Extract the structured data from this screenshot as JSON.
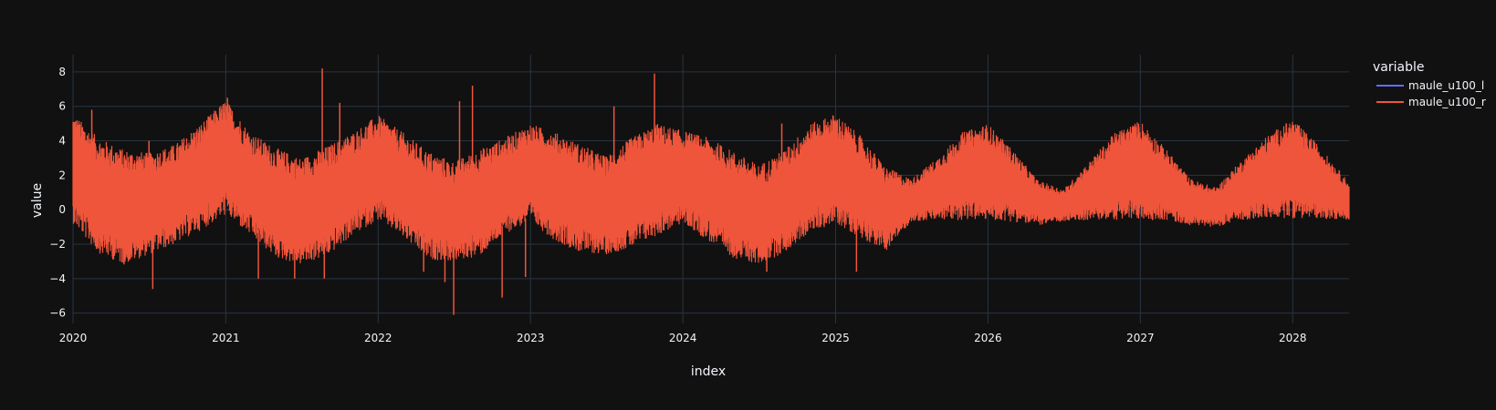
{
  "colors": {
    "background": "#111111",
    "grid": "#283442",
    "text": "#f2f5fa",
    "series_l": "#636efa",
    "series_r": "#ef553b"
  },
  "chart_data": {
    "type": "line",
    "title": "",
    "xlabel": "index",
    "ylabel": "value",
    "x_range": [
      "2020-01-01",
      "2028-05-15"
    ],
    "ylim": [
      -6.6,
      9.0
    ],
    "x_tick_labels": [
      "2020",
      "2021",
      "2022",
      "2023",
      "2024",
      "2025",
      "2026",
      "2027",
      "2028"
    ],
    "y_ticks": [
      -6,
      -4,
      -2,
      0,
      2,
      4,
      6,
      8
    ],
    "y_tick_labels": [
      "−6",
      "−4",
      "−2",
      "0",
      "2",
      "4",
      "6",
      "8"
    ],
    "grid": true,
    "legend": {
      "title": "variable",
      "placement": "top-right"
    },
    "series": [
      {
        "name": "maule_u100_l",
        "color": "#636efa",
        "note_visible": "hidden behind maule_u100_r",
        "envelope": {
          "x": [],
          "upper": [],
          "lower": []
        }
      },
      {
        "name": "maule_u100_r",
        "color": "#ef553b",
        "envelope": {
          "x": [
            "2020-01-01",
            "2020-03-01",
            "2020-05-01",
            "2020-07-01",
            "2020-09-01",
            "2020-11-01",
            "2021-01-01",
            "2021-03-01",
            "2021-05-01",
            "2021-07-01",
            "2021-09-01",
            "2021-11-01",
            "2022-01-01",
            "2022-03-01",
            "2022-05-01",
            "2022-07-01",
            "2022-09-01",
            "2022-11-01",
            "2023-01-01",
            "2023-03-01",
            "2023-05-01",
            "2023-07-01",
            "2023-09-01",
            "2023-11-01",
            "2024-01-01",
            "2024-03-01",
            "2024-05-01",
            "2024-07-01",
            "2024-09-01",
            "2024-11-01",
            "2025-01-01",
            "2025-03-01",
            "2025-05-01",
            "2025-07-01",
            "2025-09-01",
            "2025-11-01",
            "2026-01-01",
            "2026-03-01",
            "2026-05-01",
            "2026-07-01",
            "2026-09-01",
            "2026-11-01",
            "2027-01-01",
            "2027-03-01",
            "2027-05-01",
            "2027-07-01",
            "2027-09-01",
            "2027-11-01",
            "2028-01-01",
            "2028-03-01",
            "2028-05-15"
          ],
          "upper": [
            5.6,
            4.2,
            3.5,
            3.3,
            3.8,
            5.0,
            6.4,
            4.5,
            3.6,
            3.0,
            3.7,
            4.5,
            5.5,
            4.5,
            3.4,
            2.8,
            3.5,
            4.2,
            5.0,
            4.5,
            3.8,
            3.1,
            4.2,
            5.0,
            4.6,
            4.2,
            3.4,
            2.6,
            3.5,
            5.0,
            5.6,
            4.3,
            2.5,
            1.8,
            3.0,
            4.5,
            5.0,
            3.5,
            1.7,
            1.2,
            2.8,
            4.5,
            5.2,
            3.6,
            1.8,
            1.3,
            2.9,
            4.3,
            5.3,
            3.8,
            1.6
          ],
          "lower": [
            -0.8,
            -2.5,
            -3.2,
            -2.6,
            -2.0,
            -1.2,
            -0.3,
            -1.5,
            -2.8,
            -3.2,
            -2.7,
            -1.5,
            -0.6,
            -1.6,
            -2.9,
            -3.0,
            -2.7,
            -1.4,
            -0.7,
            -1.8,
            -2.5,
            -2.6,
            -2.2,
            -1.5,
            -0.8,
            -1.8,
            -2.8,
            -3.2,
            -2.5,
            -1.3,
            -0.8,
            -1.6,
            -2.4,
            -0.7,
            -0.6,
            -0.6,
            -0.6,
            -0.7,
            -0.9,
            -0.7,
            -0.6,
            -0.6,
            -0.6,
            -0.6,
            -0.9,
            -1.0,
            -0.6,
            -0.5,
            -0.5,
            -0.5,
            -0.6
          ]
        },
        "spikes": [
          {
            "x": "2020-02-15",
            "y": 5.8
          },
          {
            "x": "2020-07-10",
            "y": -4.6
          },
          {
            "x": "2020-07-01",
            "y": 4.0
          },
          {
            "x": "2021-01-05",
            "y": 6.5
          },
          {
            "x": "2021-06-15",
            "y": -4.0
          },
          {
            "x": "2021-08-20",
            "y": 8.2
          },
          {
            "x": "2021-10-01",
            "y": 6.2
          },
          {
            "x": "2021-08-25",
            "y": -4.0
          },
          {
            "x": "2022-07-15",
            "y": 6.3
          },
          {
            "x": "2022-06-10",
            "y": -4.2
          },
          {
            "x": "2022-07-01",
            "y": -6.1
          },
          {
            "x": "2022-08-15",
            "y": 7.2
          },
          {
            "x": "2022-10-25",
            "y": -5.1
          },
          {
            "x": "2022-12-20",
            "y": -3.9
          },
          {
            "x": "2023-10-25",
            "y": 7.9
          },
          {
            "x": "2023-07-20",
            "y": 6.0
          },
          {
            "x": "2024-07-20",
            "y": -3.6
          },
          {
            "x": "2025-02-20",
            "y": -3.6
          },
          {
            "x": "2021-03-20",
            "y": -4.0
          },
          {
            "x": "2022-04-20",
            "y": -3.6
          },
          {
            "x": "2024-08-25",
            "y": 5.0
          }
        ]
      }
    ]
  }
}
